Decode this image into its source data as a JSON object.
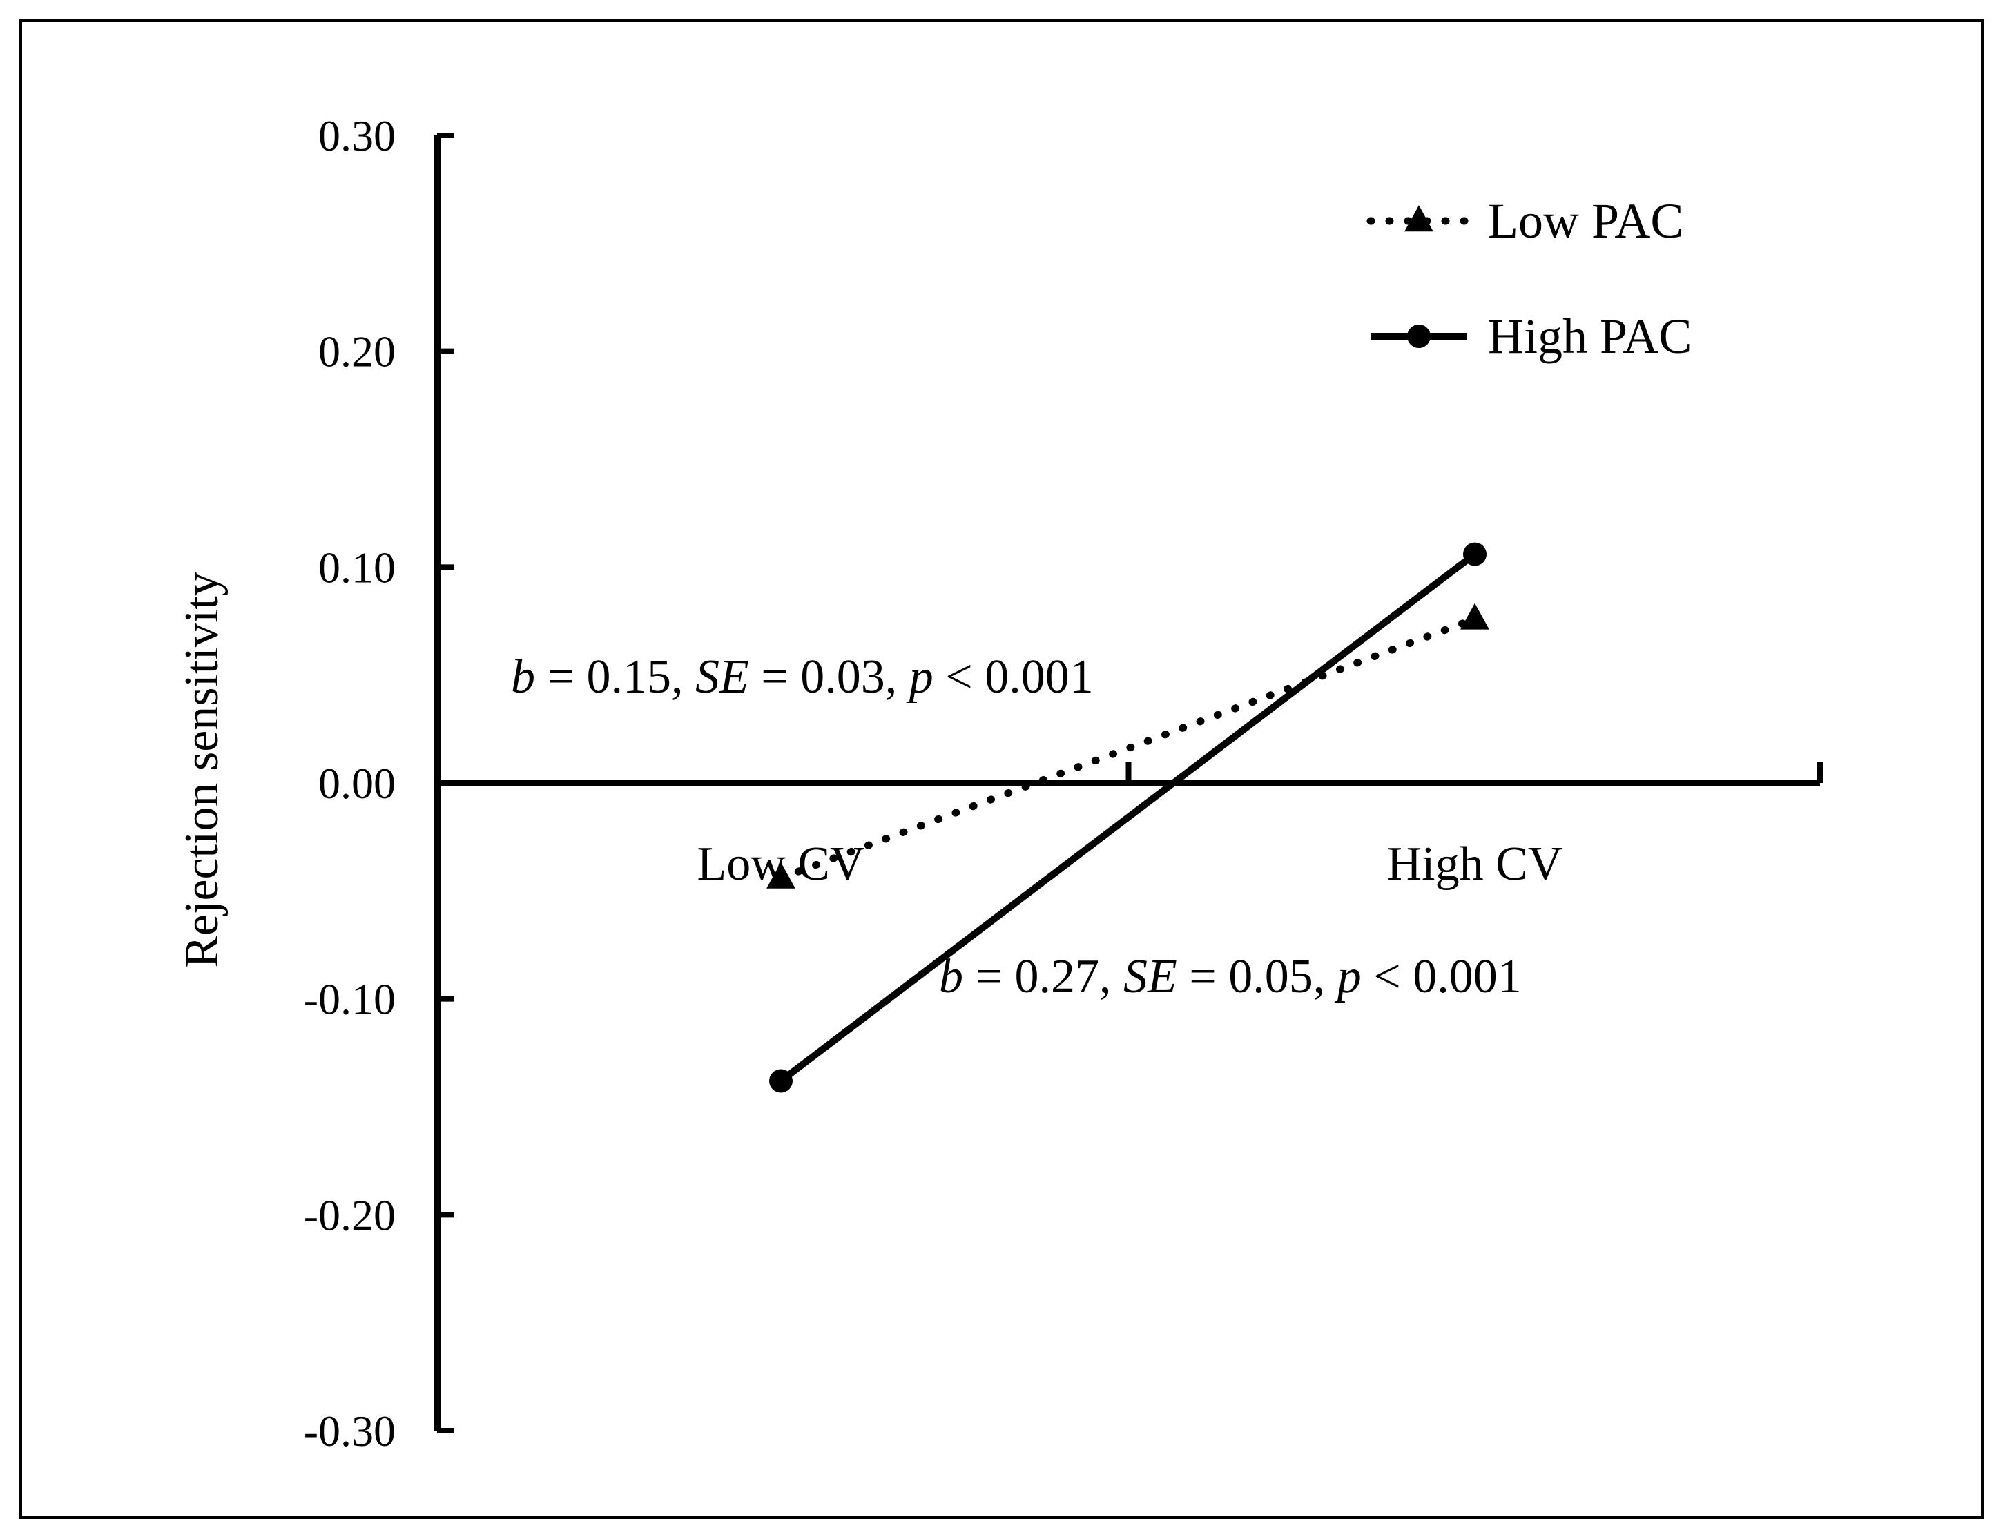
{
  "chart_data": {
    "type": "line",
    "title": "",
    "xlabel": "",
    "ylabel": "Rejection sensitivity",
    "categories": [
      "Low CV",
      "High CV"
    ],
    "ylim": [
      -0.3,
      0.3
    ],
    "yticks": [
      0.3,
      0.2,
      0.1,
      0.0,
      -0.1,
      -0.2,
      -0.3
    ],
    "ytick_labels": [
      "0.30",
      "0.20",
      "0.10",
      "0.00",
      "-0.10",
      "-0.20",
      "-0.30"
    ],
    "grid": false,
    "legend_position": "top-right",
    "series": [
      {
        "name": "Low PAC",
        "values": [
          -0.044,
          0.076
        ],
        "line_style": "dotted",
        "marker": "triangle",
        "color": "#000000"
      },
      {
        "name": "High PAC",
        "values": [
          -0.138,
          0.106
        ],
        "line_style": "solid",
        "marker": "circle",
        "color": "#000000"
      }
    ],
    "annotations": [
      {
        "parts": [
          [
            "b",
            true
          ],
          [
            " = 0.15, ",
            false
          ],
          [
            "SE",
            true
          ],
          [
            " = 0.03, ",
            false
          ],
          [
            "p",
            true
          ],
          [
            " < 0.001",
            false
          ]
        ]
      },
      {
        "parts": [
          [
            "b",
            true
          ],
          [
            " = 0.27, ",
            false
          ],
          [
            "SE",
            true
          ],
          [
            " = 0.05, ",
            false
          ],
          [
            "p",
            true
          ],
          [
            " < 0.001",
            false
          ]
        ]
      }
    ]
  }
}
